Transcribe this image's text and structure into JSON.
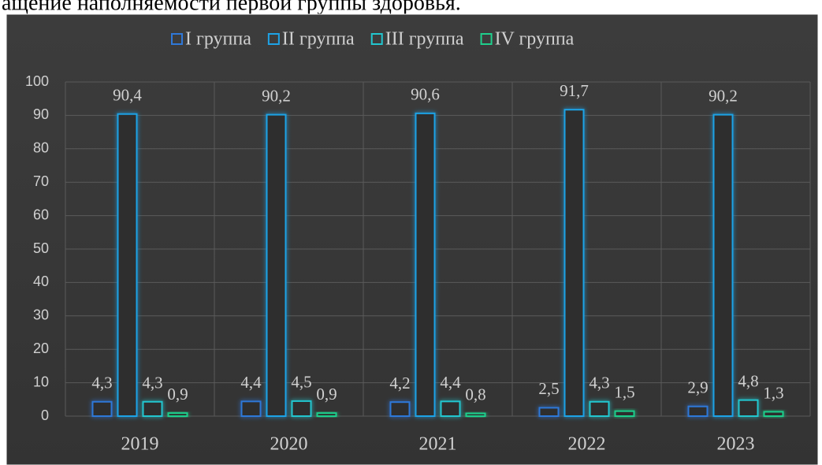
{
  "caption_text": "ащение наполняемости первой группы здоровья.",
  "chart_data": {
    "type": "bar",
    "categories": [
      "2019",
      "2020",
      "2021",
      "2022",
      "2023"
    ],
    "series": [
      {
        "name": "I группа",
        "color": "#2f78d8",
        "values": [
          4.3,
          4.4,
          4.2,
          2.5,
          2.9
        ],
        "value_labels": [
          "4,3",
          "4,4",
          "4,2",
          "2,5",
          "2,9"
        ]
      },
      {
        "name": "II группа",
        "color": "#1ea3e6",
        "values": [
          90.4,
          90.2,
          90.6,
          91.7,
          90.2
        ],
        "value_labels": [
          "90,4",
          "90,2",
          "90,6",
          "91,7",
          "90,2"
        ]
      },
      {
        "name": "III группа",
        "color": "#22c6cf",
        "values": [
          4.3,
          4.5,
          4.4,
          4.3,
          4.8
        ],
        "value_labels": [
          "4,3",
          "4,5",
          "4,4",
          "4,3",
          "4,8"
        ]
      },
      {
        "name": "IV группа",
        "color": "#1fcf8c",
        "values": [
          0.9,
          0.9,
          0.8,
          1.5,
          1.3
        ],
        "value_labels": [
          "0,9",
          "0,9",
          "0,8",
          "1,5",
          "1,3"
        ]
      }
    ],
    "ylim": [
      0,
      100
    ],
    "yticks": [
      0,
      10,
      20,
      30,
      40,
      50,
      60,
      70,
      80,
      90,
      100
    ],
    "grid": true,
    "legend": "top"
  }
}
